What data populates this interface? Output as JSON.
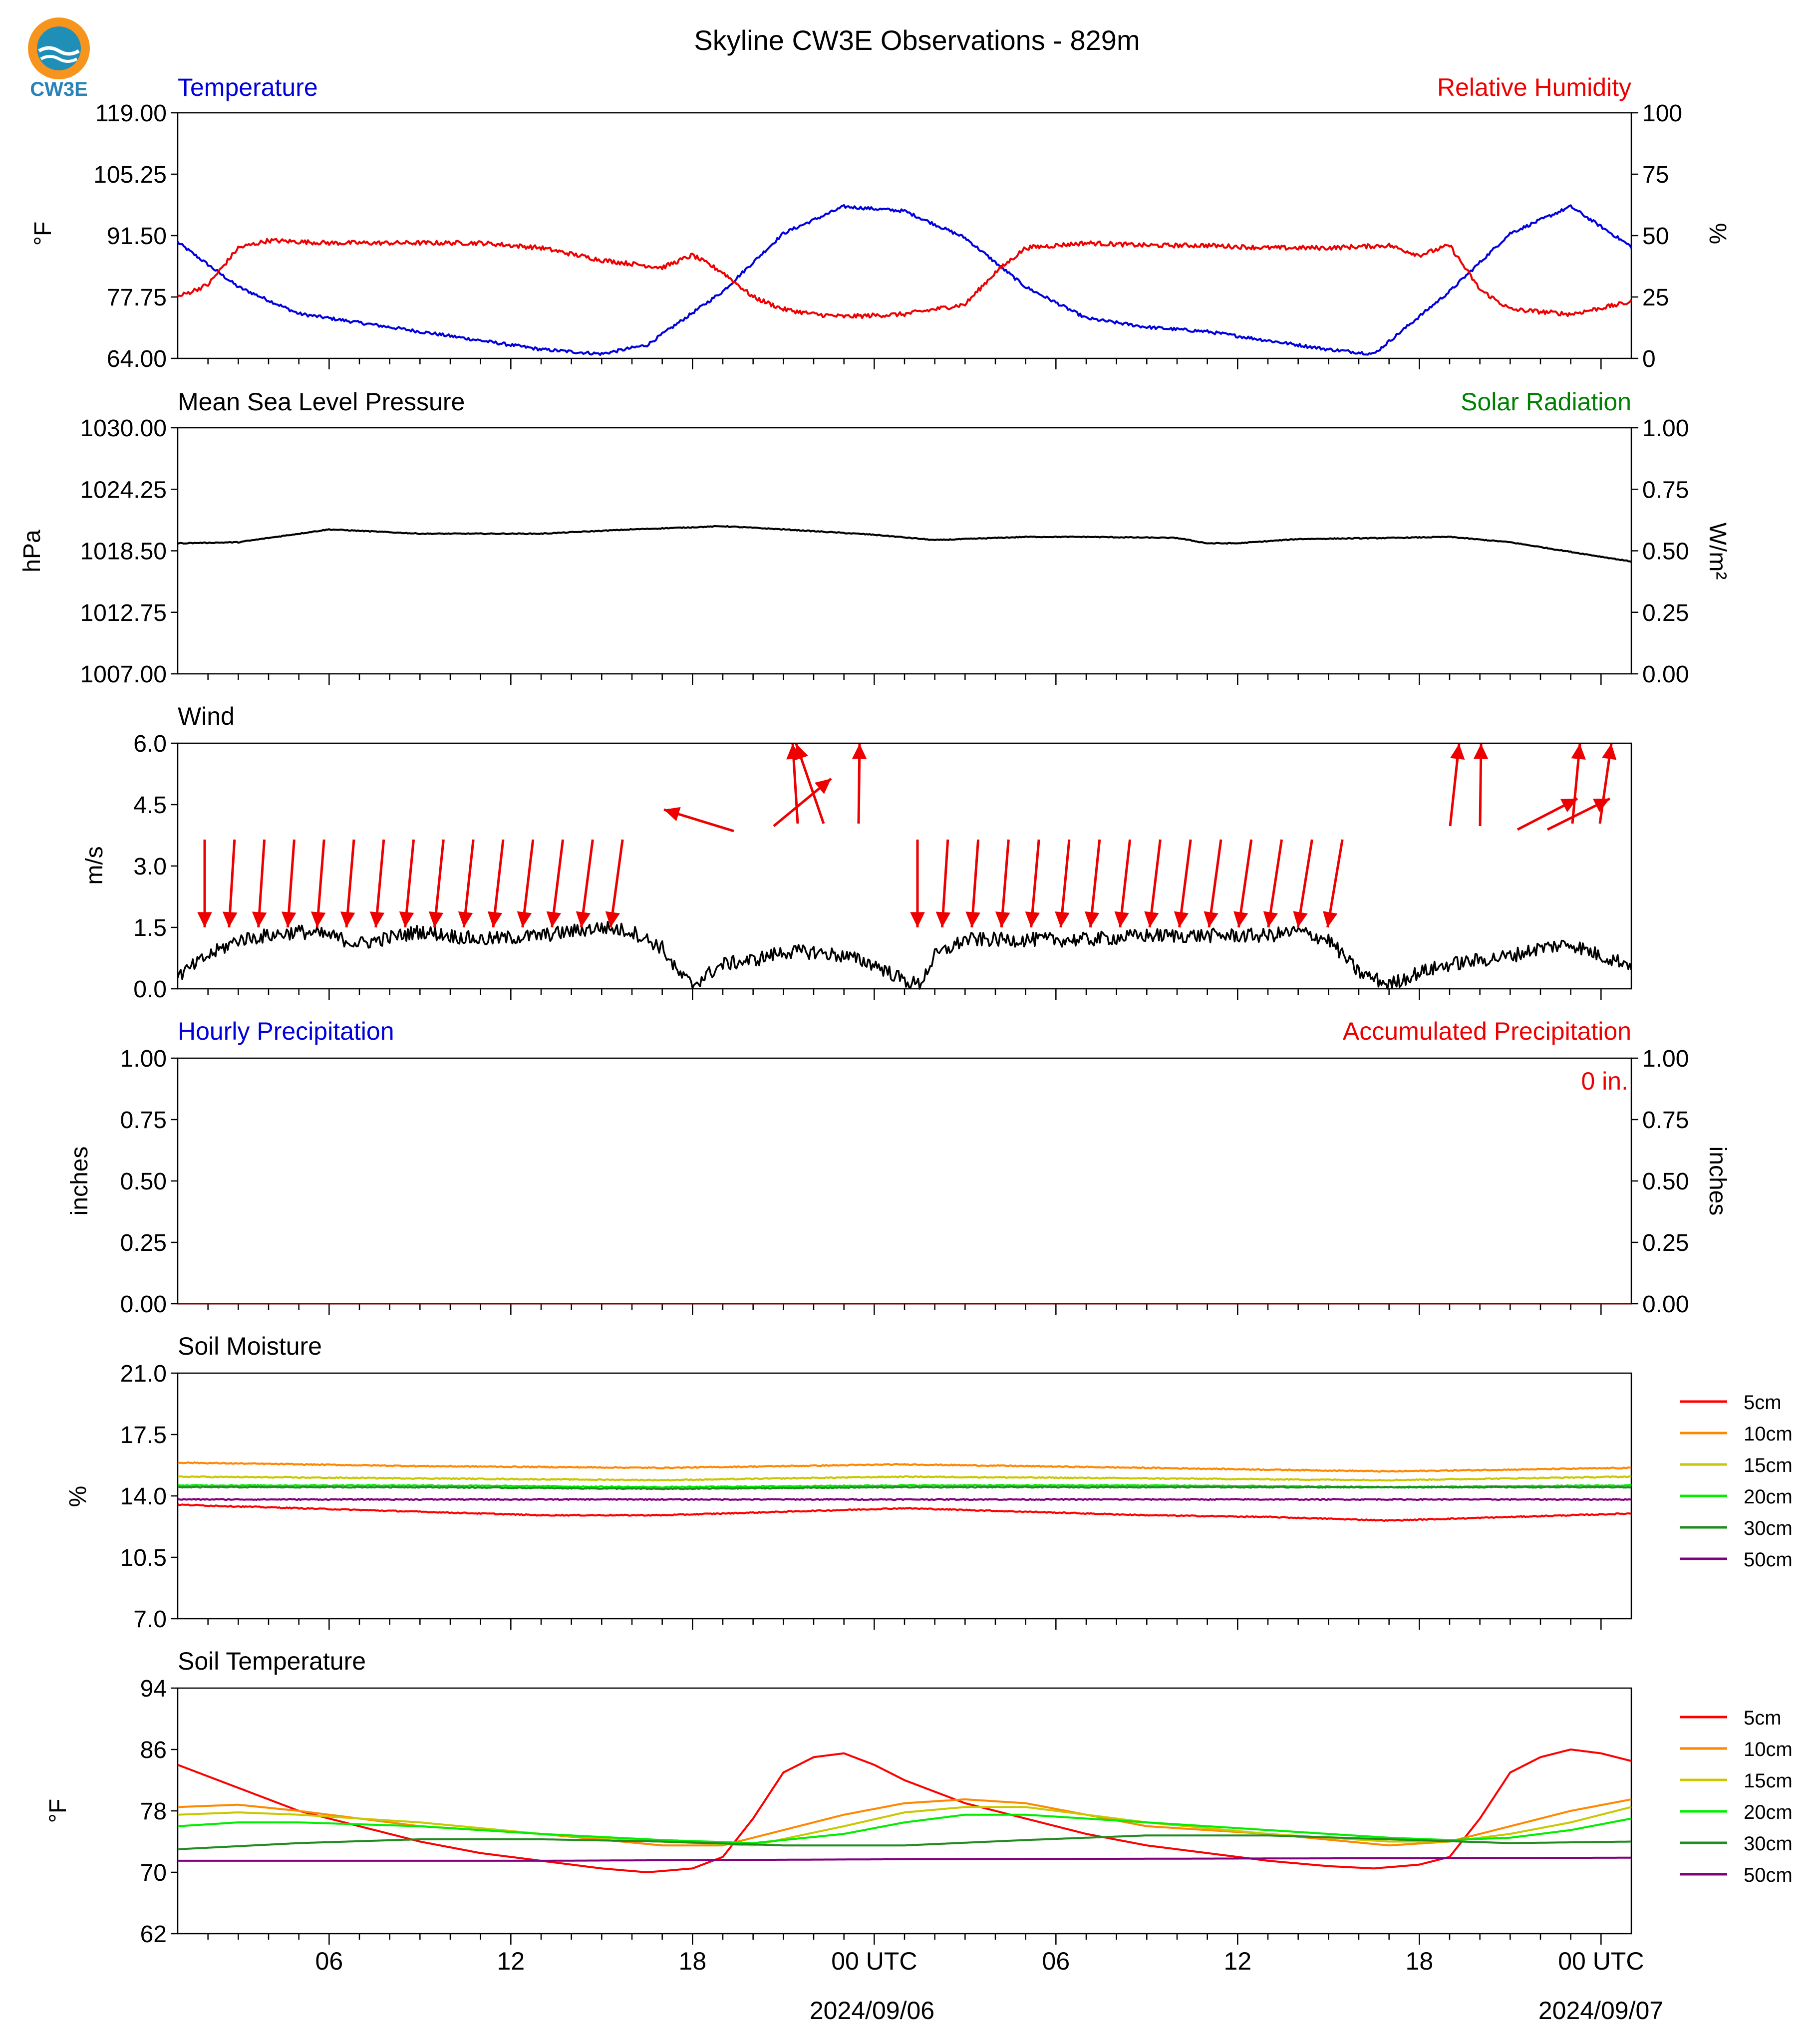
{
  "title": "Skyline CW3E Observations - 829m",
  "logo_text": "CW3E",
  "x_ticks": [
    "06",
    "12",
    "18",
    "00 UTC",
    "06",
    "12",
    "18",
    "00 UTC"
  ],
  "date_labels": [
    "2024/09/06",
    "2024/09/07"
  ],
  "panels": {
    "temperature": {
      "title_left": "Temperature",
      "title_right": "Relative Humidity",
      "ylabel_left": "°F",
      "ylabel_right": "%",
      "yticks_left": [
        "64.00",
        "77.75",
        "91.50",
        "105.25",
        "119.00"
      ],
      "yticks_right": [
        "0",
        "25",
        "50",
        "75",
        "100"
      ]
    },
    "pressure": {
      "title_left": "Mean Sea Level Pressure",
      "title_right": "Solar Radiation",
      "ylabel_left": "hPa",
      "ylabel_right": "W/m²",
      "yticks_left": [
        "1007.00",
        "1012.75",
        "1018.50",
        "1024.25",
        "1030.00"
      ],
      "yticks_right": [
        "0.00",
        "0.25",
        "0.50",
        "0.75",
        "1.00"
      ]
    },
    "wind": {
      "title_left": "Wind",
      "ylabel_left": "m/s",
      "yticks_left": [
        "0.0",
        "1.5",
        "3.0",
        "4.5",
        "6.0"
      ]
    },
    "precip": {
      "title_left": "Hourly Precipitation",
      "title_right": "Accumulated Precipitation",
      "annotation": "0 in.",
      "ylabel_left": "inches",
      "ylabel_right": "inches",
      "yticks_left": [
        "0.00",
        "0.25",
        "0.50",
        "0.75",
        "1.00"
      ],
      "yticks_right": [
        "0.00",
        "0.25",
        "0.50",
        "0.75",
        "1.00"
      ]
    },
    "soil_moisture": {
      "title_left": "Soil Moisture",
      "ylabel_left": "%",
      "yticks_left": [
        "7.0",
        "10.5",
        "14.0",
        "17.5",
        "21.0"
      ]
    },
    "soil_temperature": {
      "title_left": "Soil Temperature",
      "ylabel_left": "°F",
      "yticks_left": [
        "62",
        "70",
        "78",
        "86",
        "94"
      ]
    }
  },
  "legend_labels": [
    "5cm",
    "10cm",
    "15cm",
    "20cm",
    "30cm",
    "50cm"
  ],
  "colors": {
    "temperature": "#0000dd",
    "humidity": "#ee0000",
    "pressure": "#000000",
    "solar": "#008000",
    "wind_arrows": "#ee0000",
    "soil": [
      "#ff0000",
      "#ff8800",
      "#c8c800",
      "#00ee00",
      "#228b22",
      "#800080"
    ]
  },
  "chart_data": [
    {
      "type": "line",
      "panel": "temperature",
      "x_unit": "hours from 2024-09-05 01:30 UTC",
      "series": [
        {
          "name": "Temperature",
          "axis": "left",
          "unit": "°F",
          "ylim": [
            64,
            119
          ],
          "x": [
            0,
            2,
            4,
            6,
            8,
            10,
            12,
            14,
            15.5,
            18,
            20,
            22,
            24,
            26,
            28,
            30,
            32,
            34,
            36,
            38,
            39.5,
            42,
            44,
            46,
            48
          ],
          "values": [
            90,
            80,
            74,
            72,
            70,
            68,
            66,
            65,
            67,
            79,
            92,
            98,
            97,
            91,
            80,
            73,
            71,
            70,
            68,
            66,
            65,
            79,
            92,
            98,
            89
          ]
        },
        {
          "name": "Relative Humidity",
          "axis": "right",
          "unit": "%",
          "ylim": [
            0,
            100
          ],
          "x": [
            0,
            1,
            2,
            3,
            5,
            8,
            10,
            12,
            14,
            16,
            17,
            18,
            19,
            20,
            21,
            22,
            24,
            26,
            27,
            28,
            30,
            32,
            34,
            36,
            38,
            40,
            41,
            42,
            43,
            44,
            46,
            48
          ],
          "values": [
            25,
            30,
            45,
            48,
            47,
            47,
            47,
            45,
            40,
            37,
            42,
            35,
            25,
            20,
            18,
            17,
            18,
            22,
            35,
            45,
            47,
            46,
            46,
            45,
            45,
            46,
            42,
            46,
            28,
            20,
            18,
            23
          ]
        }
      ]
    },
    {
      "type": "line",
      "panel": "pressure",
      "series": [
        {
          "name": "Mean Sea Level Pressure",
          "unit": "hPa",
          "ylim": [
            1007,
            1030
          ],
          "x": [
            0,
            2,
            5,
            8,
            10,
            12,
            15,
            18,
            20,
            23,
            25,
            26,
            28,
            30,
            33,
            34,
            35,
            37,
            40,
            42,
            44,
            46,
            48
          ],
          "values": [
            1019.2,
            1019.3,
            1020.5,
            1020.1,
            1020.1,
            1020.1,
            1020.5,
            1020.8,
            1020.5,
            1020.0,
            1019.5,
            1019.6,
            1019.8,
            1019.8,
            1019.7,
            1019.2,
            1019.2,
            1019.6,
            1019.7,
            1019.8,
            1019.3,
            1018.4,
            1017.5
          ]
        }
      ]
    },
    {
      "type": "line",
      "panel": "wind",
      "series": [
        {
          "name": "Wind",
          "unit": "m/s",
          "ylim": [
            0,
            6
          ],
          "x": [
            0,
            1,
            2,
            3,
            4,
            5,
            6,
            8,
            10,
            12,
            14,
            15,
            16,
            16.5,
            17,
            18,
            19,
            20,
            21,
            22,
            23,
            24,
            24.5,
            25,
            26,
            27,
            28,
            30,
            32,
            34,
            36,
            37,
            38,
            39,
            40,
            41,
            42,
            43,
            44,
            45,
            46,
            47,
            48
          ],
          "values": [
            0.3,
            0.8,
            1.2,
            1.3,
            1.4,
            1.3,
            1.1,
            1.4,
            1.2,
            1.3,
            1.5,
            1.4,
            1.0,
            0.4,
            0.1,
            0.6,
            0.7,
            0.9,
            0.9,
            0.8,
            0.6,
            0.2,
            0.1,
            0.8,
            1.2,
            1.2,
            1.2,
            1.2,
            1.3,
            1.3,
            1.3,
            1.4,
            1.2,
            0.4,
            0.1,
            0.4,
            0.6,
            0.7,
            0.8,
            1.0,
            1.1,
            0.8,
            0.6
          ]
        }
      ]
    },
    {
      "type": "line",
      "panel": "precip",
      "series": [
        {
          "name": "Hourly Precipitation",
          "unit": "inches",
          "ylim": [
            0,
            1
          ],
          "x": [
            0,
            48
          ],
          "values": [
            0,
            0
          ]
        }
      ]
    },
    {
      "type": "line",
      "panel": "soil_moisture",
      "ylim": [
        7,
        21
      ],
      "series": [
        {
          "name": "5cm",
          "x": [
            0,
            4,
            8,
            12,
            16,
            20,
            24,
            28,
            32,
            36,
            40,
            44,
            48
          ],
          "values": [
            13.5,
            13.3,
            13.1,
            12.9,
            12.9,
            13.1,
            13.3,
            13.1,
            12.9,
            12.8,
            12.6,
            12.8,
            13.0
          ]
        },
        {
          "name": "10cm",
          "x": [
            0,
            8,
            16,
            24,
            32,
            40,
            48
          ],
          "values": [
            15.9,
            15.7,
            15.6,
            15.8,
            15.6,
            15.4,
            15.6
          ]
        },
        {
          "name": "15cm",
          "x": [
            0,
            8,
            16,
            24,
            32,
            40,
            48
          ],
          "values": [
            15.1,
            15.0,
            14.9,
            15.1,
            15.0,
            14.9,
            15.1
          ]
        },
        {
          "name": "20cm",
          "x": [
            0,
            8,
            16,
            24,
            32,
            40,
            48
          ],
          "values": [
            14.6,
            14.6,
            14.5,
            14.6,
            14.6,
            14.5,
            14.6
          ]
        },
        {
          "name": "30cm",
          "x": [
            0,
            8,
            16,
            24,
            32,
            40,
            48
          ],
          "values": [
            14.5,
            14.5,
            14.4,
            14.5,
            14.5,
            14.5,
            14.5
          ]
        },
        {
          "name": "50cm",
          "x": [
            0,
            8,
            16,
            24,
            32,
            40,
            48
          ],
          "values": [
            13.8,
            13.8,
            13.8,
            13.8,
            13.8,
            13.8,
            13.8
          ]
        }
      ]
    },
    {
      "type": "line",
      "panel": "soil_temperature",
      "ylim": [
        62,
        94
      ],
      "series": [
        {
          "name": "5cm",
          "x": [
            0,
            2,
            4,
            6,
            8,
            10,
            12,
            14,
            15.5,
            17,
            18,
            19,
            20,
            21,
            22,
            23,
            24,
            26,
            28,
            30,
            32,
            34,
            36,
            38,
            39.5,
            41,
            42,
            43,
            44,
            45,
            46,
            47,
            48
          ],
          "values": [
            84,
            81,
            78,
            76,
            74,
            72.5,
            71.5,
            70.5,
            70,
            70.5,
            72,
            77,
            83,
            85,
            85.5,
            84,
            82,
            79,
            77,
            75,
            73.5,
            72.5,
            71.5,
            70.8,
            70.5,
            71,
            72,
            77,
            83,
            85,
            86,
            85.5,
            84.5
          ]
        },
        {
          "name": "10cm",
          "x": [
            0,
            2,
            4,
            8,
            12,
            16,
            18,
            20,
            22,
            24,
            26,
            28,
            32,
            36,
            40,
            42,
            44,
            46,
            48
          ],
          "values": [
            78.5,
            78.8,
            78,
            76,
            75,
            73.5,
            73.5,
            75.5,
            77.5,
            79,
            79.5,
            79,
            76,
            75,
            73.5,
            74,
            76,
            78,
            79.5
          ]
        },
        {
          "name": "15cm",
          "x": [
            0,
            2,
            4,
            8,
            12,
            16,
            19,
            22,
            24,
            26,
            28,
            32,
            36,
            40,
            42,
            44,
            46,
            48
          ],
          "values": [
            77.5,
            77.8,
            77.5,
            76.5,
            75,
            74,
            73.5,
            76,
            77.8,
            78.5,
            78.5,
            76.5,
            75,
            74,
            74,
            75,
            76.5,
            78.5
          ]
        },
        {
          "name": "20cm",
          "x": [
            0,
            2,
            4,
            8,
            12,
            16,
            19,
            22,
            24,
            26,
            28,
            32,
            36,
            40,
            42,
            44,
            46,
            48
          ],
          "values": [
            76,
            76.5,
            76.5,
            76,
            75,
            74.2,
            73.8,
            75,
            76.5,
            77.5,
            77.5,
            76.5,
            75.5,
            74.5,
            74.2,
            74.5,
            75.5,
            77
          ]
        },
        {
          "name": "30cm",
          "x": [
            0,
            4,
            8,
            12,
            16,
            20,
            24,
            28,
            32,
            36,
            40,
            44,
            48
          ],
          "values": [
            73,
            73.8,
            74.3,
            74.3,
            74,
            73.5,
            73.5,
            74.2,
            74.8,
            74.8,
            74.3,
            73.8,
            74
          ]
        },
        {
          "name": "50cm",
          "x": [
            0,
            12,
            24,
            36,
            48
          ],
          "values": [
            71.5,
            71.5,
            71.7,
            71.8,
            71.9
          ]
        }
      ]
    }
  ]
}
